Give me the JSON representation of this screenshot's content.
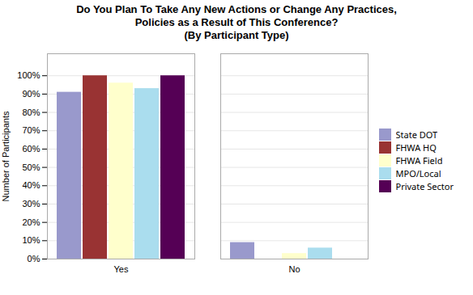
{
  "chart_data": {
    "type": "bar",
    "title": "Do You Plan To Take Any New Actions or Change Any Practices,\nPolicies as a Result of This Conference?\n(By Participant Type)",
    "ylabel": "Number of Participants",
    "categories": [
      "Yes",
      "No"
    ],
    "series": [
      {
        "name": "State DOT",
        "color": "#9999cc",
        "values": [
          0.91,
          0.09
        ]
      },
      {
        "name": "FHWA HQ",
        "color": "#993333",
        "values": [
          1.0,
          0
        ]
      },
      {
        "name": "FHWA Field",
        "color": "#ffffcc",
        "values": [
          0.96,
          0.03
        ]
      },
      {
        "name": "MPO/Local",
        "color": "#aaddee",
        "values": [
          0.93,
          0.06
        ]
      },
      {
        "name": "Private Sector",
        "color": "#550055",
        "values": [
          1.0,
          0
        ]
      }
    ],
    "ylim": [
      0,
      1.12
    ],
    "yticks": [
      {
        "value": 0,
        "label": "0%"
      },
      {
        "value": 0.1,
        "label": "10%"
      },
      {
        "value": 0.2,
        "label": "20%"
      },
      {
        "value": 0.3,
        "label": "30%"
      },
      {
        "value": 0.4,
        "label": "40%"
      },
      {
        "value": 0.5,
        "label": "50%"
      },
      {
        "value": 0.6,
        "label": "60%"
      },
      {
        "value": 0.7,
        "label": "70%"
      },
      {
        "value": 0.8,
        "label": "80%"
      },
      {
        "value": 0.9,
        "label": "90%"
      },
      {
        "value": 1.0,
        "label": "100%"
      }
    ],
    "grid": true,
    "legend": "right"
  }
}
